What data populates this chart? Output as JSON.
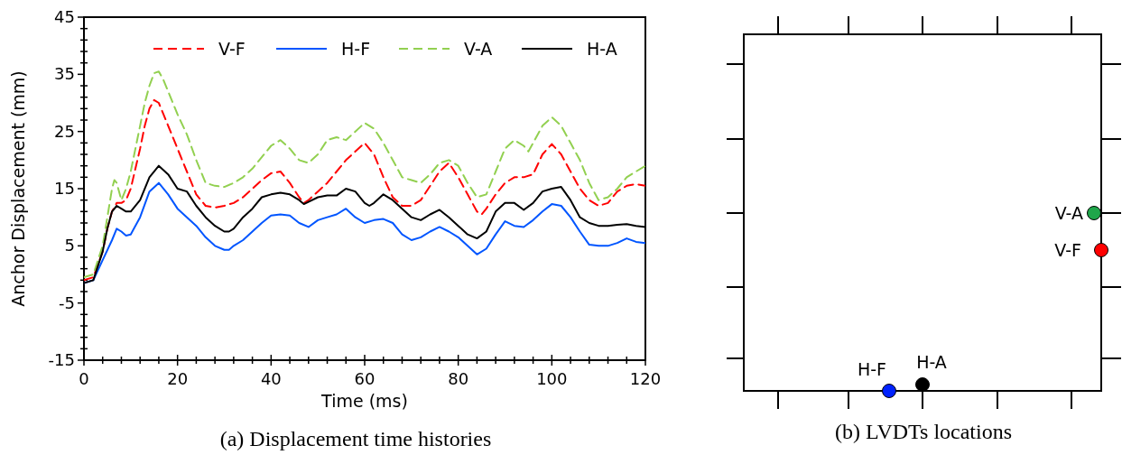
{
  "chart_data": [
    {
      "type": "line",
      "title": "(a) Displacement time histories",
      "xlabel": "Time (ms)",
      "ylabel": "Anchor Displacement (mm)",
      "xlim": [
        0,
        120
      ],
      "ylim": [
        -15,
        45
      ],
      "xticks": [
        0,
        {
          "value": 4,
          "label": null
        },
        {
          "value": 8,
          "label": null
        },
        {
          "value": 12,
          "label": null
        },
        {
          "value": 16,
          "label": null
        },
        20,
        {
          "value": 24,
          "label": null
        },
        {
          "value": 28,
          "label": null
        },
        {
          "value": 32,
          "label": null
        },
        {
          "value": 36,
          "label": null
        },
        40,
        {
          "value": 44,
          "label": null
        },
        {
          "value": 48,
          "label": null
        },
        {
          "value": 52,
          "label": null
        },
        {
          "value": 56,
          "label": null
        },
        60,
        {
          "value": 64,
          "label": null
        },
        {
          "value": 68,
          "label": null
        },
        {
          "value": 72,
          "label": null
        },
        {
          "value": 76,
          "label": null
        },
        80,
        {
          "value": 84,
          "label": null
        },
        {
          "value": 88,
          "label": null
        },
        {
          "value": 92,
          "label": null
        },
        {
          "value": 96,
          "label": null
        },
        100,
        {
          "value": 104,
          "label": null
        },
        {
          "value": 108,
          "label": null
        },
        {
          "value": 112,
          "label": null
        },
        {
          "value": 116,
          "label": null
        },
        120
      ],
      "yticks": [
        -15,
        {
          "value": -13,
          "label": null
        },
        {
          "value": -11,
          "label": null
        },
        {
          "value": -9,
          "label": null
        },
        {
          "value": -7,
          "label": null
        },
        -5,
        {
          "value": -3,
          "label": null
        },
        {
          "value": -1,
          "label": null
        },
        {
          "value": 1,
          "label": null
        },
        {
          "value": 3,
          "label": null
        },
        5,
        {
          "value": 7,
          "label": null
        },
        {
          "value": 9,
          "label": null
        },
        {
          "value": 11,
          "label": null
        },
        {
          "value": 13,
          "label": null
        },
        15,
        {
          "value": 17,
          "label": null
        },
        {
          "value": 19,
          "label": null
        },
        {
          "value": 21,
          "label": null
        },
        {
          "value": 23,
          "label": null
        },
        25,
        {
          "value": 27,
          "label": null
        },
        {
          "value": 29,
          "label": null
        },
        {
          "value": 31,
          "label": null
        },
        {
          "value": 33,
          "label": null
        },
        35,
        {
          "value": 37,
          "label": null
        },
        {
          "value": 39,
          "label": null
        },
        {
          "value": 41,
          "label": null
        },
        {
          "value": 43,
          "label": null
        },
        45
      ],
      "grid": false,
      "legend": "top",
      "marker": "none",
      "series": [
        {
          "name": "V-F",
          "color": "#ff0000",
          "line_style": "dashed",
          "x": [
            0,
            2,
            4,
            5,
            6,
            7,
            8,
            9,
            10,
            12,
            13,
            14,
            15,
            16,
            17,
            18,
            20,
            22,
            24,
            26,
            28,
            30,
            32,
            34,
            36,
            38,
            40,
            42,
            44,
            46,
            47,
            48,
            50,
            52,
            54,
            56,
            58,
            60,
            62,
            64,
            66,
            68,
            70,
            72,
            74,
            76,
            78,
            80,
            82,
            84,
            85,
            86,
            88,
            90,
            92,
            94,
            96,
            98,
            100,
            102,
            104,
            106,
            108,
            110,
            112,
            114,
            116,
            118,
            120
          ],
          "values": [
            -1,
            -0.5,
            4,
            8,
            11,
            12.5,
            12.5,
            13,
            15,
            22,
            26,
            29,
            30.5,
            30,
            28,
            26,
            22,
            18,
            14,
            12,
            11.7,
            12,
            12.5,
            13.5,
            15,
            16.5,
            17.7,
            18,
            16,
            13.5,
            12.5,
            13,
            14.5,
            16,
            18,
            20,
            21.5,
            23,
            21,
            17,
            13.5,
            12,
            12,
            13,
            15.5,
            18,
            19.5,
            17,
            14,
            11,
            10.5,
            11.5,
            14,
            16,
            17,
            17,
            17.5,
            21,
            22.8,
            21,
            18,
            15,
            13,
            12,
            12.5,
            14.5,
            15.5,
            15.8,
            15.5
          ]
        },
        {
          "name": "H-F",
          "color": "#0055ff",
          "line_style": "solid",
          "x": [
            0,
            2,
            4,
            6,
            7,
            8,
            9,
            10,
            12,
            14,
            16,
            18,
            20,
            22,
            24,
            26,
            28,
            30,
            31,
            32,
            34,
            36,
            38,
            40,
            42,
            44,
            46,
            48,
            50,
            52,
            54,
            56,
            58,
            60,
            62,
            64,
            66,
            68,
            70,
            72,
            74,
            76,
            78,
            80,
            82,
            84,
            86,
            88,
            90,
            92,
            94,
            96,
            98,
            100,
            102,
            104,
            106,
            108,
            110,
            112,
            114,
            116,
            118,
            120
          ],
          "values": [
            -1.5,
            -1,
            2.5,
            6,
            8,
            7.5,
            6.8,
            7,
            10,
            14.5,
            16,
            14,
            11.5,
            10,
            8.5,
            6.5,
            5,
            4.3,
            4.3,
            5,
            6,
            7.5,
            9,
            10.3,
            10.5,
            10.3,
            9,
            8.3,
            9.5,
            10,
            10.5,
            11.5,
            10,
            9,
            9.5,
            9.7,
            9,
            7,
            6,
            6.5,
            7.5,
            8.3,
            7.5,
            6.5,
            5,
            3.5,
            4.5,
            7,
            9.3,
            8.5,
            8.3,
            9.5,
            11,
            12.3,
            12,
            10,
            7.5,
            5.2,
            5,
            5,
            5.5,
            6.3,
            5.7,
            5.5
          ]
        },
        {
          "name": "V-A",
          "color": "#92d050",
          "line_style": "dashed",
          "x": [
            0,
            2,
            4,
            5,
            6,
            6.5,
            7,
            8,
            9,
            10,
            12,
            13,
            14,
            15,
            16,
            17,
            18,
            20,
            22,
            24,
            26,
            28,
            30,
            32,
            34,
            36,
            38,
            40,
            42,
            44,
            46,
            48,
            50,
            52,
            54,
            56,
            58,
            60,
            62,
            64,
            66,
            68,
            70,
            72,
            74,
            76,
            78,
            80,
            82,
            84,
            86,
            88,
            90,
            92,
            94,
            95,
            96,
            98,
            100,
            102,
            104,
            106,
            108,
            110,
            112,
            114,
            116,
            118,
            120
          ],
          "values": [
            -0.5,
            0,
            5,
            10,
            15,
            16.5,
            16,
            13,
            15,
            18,
            26,
            30,
            33,
            35.2,
            35.5,
            34,
            32,
            28,
            24.5,
            20,
            16,
            15.5,
            15.3,
            16,
            17,
            18.5,
            20.5,
            22.5,
            23.5,
            22,
            20,
            19.5,
            21,
            23.5,
            24,
            23.5,
            25,
            26.5,
            25.5,
            23,
            20,
            17,
            16.5,
            16,
            17.5,
            19.5,
            20,
            19,
            16,
            13.5,
            14,
            18,
            22,
            23.5,
            22.5,
            21.5,
            23,
            26,
            27.5,
            26,
            23,
            20,
            16,
            13,
            13.5,
            15,
            17,
            18,
            19
          ]
        },
        {
          "name": "H-A",
          "color": "#000000",
          "line_style": "solid",
          "x": [
            0,
            2,
            4,
            5,
            6,
            7,
            8,
            9,
            10,
            12,
            14,
            16,
            18,
            20,
            22,
            24,
            26,
            28,
            30,
            31,
            32,
            34,
            36,
            38,
            40,
            42,
            44,
            46,
            47,
            48,
            50,
            52,
            54,
            56,
            58,
            60,
            61,
            62,
            64,
            66,
            68,
            70,
            72,
            74,
            76,
            78,
            80,
            82,
            84,
            86,
            88,
            90,
            92,
            94,
            96,
            98,
            100,
            102,
            104,
            106,
            108,
            110,
            112,
            114,
            116,
            118,
            120
          ],
          "values": [
            -1.5,
            -1,
            4,
            8,
            11,
            12,
            11.5,
            11,
            11,
            13,
            17,
            19,
            17.5,
            15,
            14.5,
            12,
            10,
            8.5,
            7.5,
            7.5,
            8,
            10,
            11.5,
            13.5,
            14,
            14.3,
            14,
            13,
            12.3,
            12.7,
            13.5,
            13.8,
            13.8,
            15,
            14.5,
            12.5,
            12,
            12.5,
            14,
            13,
            11.5,
            10,
            9.5,
            10.5,
            11.3,
            10,
            8.5,
            7,
            6.3,
            7.5,
            11,
            12.5,
            12.5,
            11.3,
            12.5,
            14.5,
            15,
            15.3,
            13,
            10,
            9,
            8.5,
            8.5,
            8.7,
            8.8,
            8.5,
            8.3
          ]
        }
      ]
    },
    {
      "type": "other",
      "title": "(b) LVDTs locations",
      "annotations": [
        "V-A",
        "V-F",
        "H-F",
        "H-A"
      ]
    }
  ]
}
